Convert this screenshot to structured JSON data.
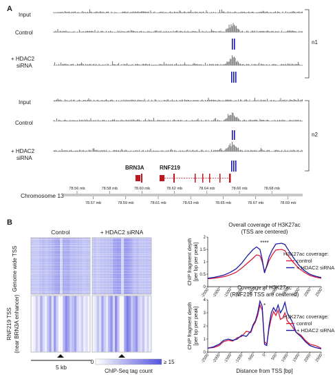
{
  "panelA": {
    "label": "A",
    "tracks": {
      "input": "Input",
      "control": "Control",
      "hdac_line1": "+ HDAC2",
      "hdac_line2": "siRNA"
    },
    "replicates": [
      "n1",
      "n2"
    ],
    "genes": [
      "BRN3A",
      "RNF219"
    ],
    "chromosome_label": "Chromosome 13",
    "ticks_upper": [
      "78.56 mb",
      "78.58 mb",
      "78.60 mb",
      "78.62 mb",
      "78.64 mb",
      "78.66 mb",
      "78.68 mb"
    ],
    "ticks_lower": [
      "78.57 mb",
      "78.59 mb",
      "78.61 mb",
      "78.63 mb",
      "78.65 mb",
      "78.67 mb",
      "78.69 mb"
    ]
  },
  "panelB": {
    "label": "B",
    "heatmap_titles": [
      "Control",
      "+ HDAC2 siRNA"
    ],
    "row_label_1": "Genome wide TSS",
    "row_label_2a": "RNF219 TSS",
    "row_label_2b": "(near BRN3A enhancer)",
    "scale_label": "5 kb",
    "colorbar_min": "0",
    "colorbar_max": "≥ 15",
    "colorbar_label": "ChIP-Seq tag count",
    "colorbar_colors": [
      "#ffffff",
      "#5555e0"
    ]
  },
  "chart_data": [
    {
      "type": "line",
      "title": "Overall coverage of H3K27ac",
      "subtitle": "(TSS are centered)",
      "xlabel": "",
      "ylabel": "ChIP fragment depth [per bp per peak]",
      "ylabel_line1": "ChIP fragment depth",
      "ylabel_line2": "[per bp per peak]",
      "xlim": [
        -2500,
        2500
      ],
      "ylim": [
        0,
        2
      ],
      "xticks": [
        -2500,
        -2000,
        -1500,
        -1000,
        -500,
        0,
        500,
        1000,
        1500,
        2000,
        2500
      ],
      "yticks": [
        "0",
        "0.5",
        "1",
        "1.5",
        "2"
      ],
      "annotation": "****",
      "legend_title": "H3K27ac coverage:",
      "series": [
        {
          "name": "control",
          "color": "#d81b3c",
          "x": [
            -2500,
            -2250,
            -2000,
            -1750,
            -1500,
            -1250,
            -1000,
            -750,
            -500,
            -350,
            -200,
            -100,
            0,
            100,
            200,
            350,
            500,
            750,
            900,
            1000,
            1250,
            1500,
            1750,
            2000,
            2250,
            2500
          ],
          "y": [
            0.32,
            0.34,
            0.37,
            0.41,
            0.48,
            0.58,
            0.75,
            0.95,
            1.15,
            1.28,
            1.25,
            1.0,
            0.62,
            0.8,
            1.05,
            1.3,
            1.48,
            1.5,
            1.45,
            1.3,
            1.0,
            0.75,
            0.58,
            0.45,
            0.38,
            0.34
          ]
        },
        {
          "name": "+ HDAC2 siRNA",
          "color": "#1a1aa8",
          "x": [
            -2500,
            -2250,
            -2000,
            -1750,
            -1500,
            -1250,
            -1000,
            -750,
            -500,
            -350,
            -200,
            -100,
            0,
            100,
            200,
            350,
            500,
            750,
            900,
            1000,
            1250,
            1500,
            1750,
            2000,
            2250,
            2500
          ],
          "y": [
            0.34,
            0.37,
            0.42,
            0.48,
            0.58,
            0.72,
            0.95,
            1.25,
            1.5,
            1.6,
            1.5,
            1.1,
            0.55,
            0.85,
            1.2,
            1.5,
            1.72,
            1.75,
            1.7,
            1.55,
            1.2,
            0.88,
            0.65,
            0.5,
            0.42,
            0.37
          ]
        }
      ]
    },
    {
      "type": "line",
      "title": "Coverage of H3K27ac",
      "subtitle": "(RNF219 TSS are centered)",
      "xlabel": "Distance from TSS [bp]",
      "ylabel": "ChIP fragment depth [per bp per peak]",
      "ylabel_line1": "ChIP fragment depth",
      "ylabel_line2": "[per bp per peak]",
      "xlim": [
        -2500,
        2500
      ],
      "ylim": [
        0,
        4
      ],
      "xticks": [
        -2500,
        -2000,
        -1500,
        -1000,
        -500,
        0,
        500,
        1000,
        1500,
        2000,
        2500
      ],
      "yticks": [
        "0",
        "1",
        "2",
        "3",
        "4"
      ],
      "annotation": "*",
      "legend_title": "H3K27ac coverage:",
      "series": [
        {
          "name": "control",
          "color": "#d81b3c",
          "x": [
            -2500,
            -2250,
            -2000,
            -1800,
            -1600,
            -1400,
            -1200,
            -1000,
            -800,
            -600,
            -500,
            -400,
            -300,
            -200,
            -100,
            0,
            100,
            200,
            300,
            400,
            500,
            600,
            700,
            800,
            900,
            1000,
            1200,
            1400,
            1600,
            1800,
            2000,
            2250,
            2500
          ],
          "y": [
            0.3,
            0.35,
            0.5,
            0.8,
            0.9,
            0.85,
            1.1,
            1.2,
            1.6,
            1.5,
            2.0,
            2.3,
            2.8,
            3.6,
            3.2,
            0.8,
            0.6,
            1.8,
            2.6,
            3.1,
            2.8,
            3.2,
            2.5,
            2.6,
            3.0,
            2.4,
            2.0,
            1.5,
            1.3,
            0.9,
            0.6,
            0.5,
            0.3
          ]
        },
        {
          "name": "+ HDAC2 siRNA",
          "color": "#1a1aa8",
          "x": [
            -2500,
            -2250,
            -2000,
            -1800,
            -1600,
            -1400,
            -1200,
            -1000,
            -800,
            -600,
            -500,
            -400,
            -300,
            -200,
            -100,
            0,
            100,
            200,
            300,
            400,
            500,
            600,
            700,
            800,
            900,
            1000,
            1200,
            1400,
            1600,
            1800,
            2000,
            2250,
            2500
          ],
          "y": [
            0.3,
            0.4,
            0.6,
            0.9,
            1.0,
            0.9,
            1.0,
            1.3,
            1.2,
            1.6,
            2.1,
            2.4,
            3.0,
            3.9,
            3.5,
            0.6,
            0.5,
            2.0,
            3.0,
            3.4,
            3.1,
            3.6,
            3.0,
            3.3,
            3.8,
            3.0,
            2.4,
            1.5,
            1.2,
            0.8,
            0.5,
            0.35,
            0.25
          ]
        }
      ]
    }
  ]
}
